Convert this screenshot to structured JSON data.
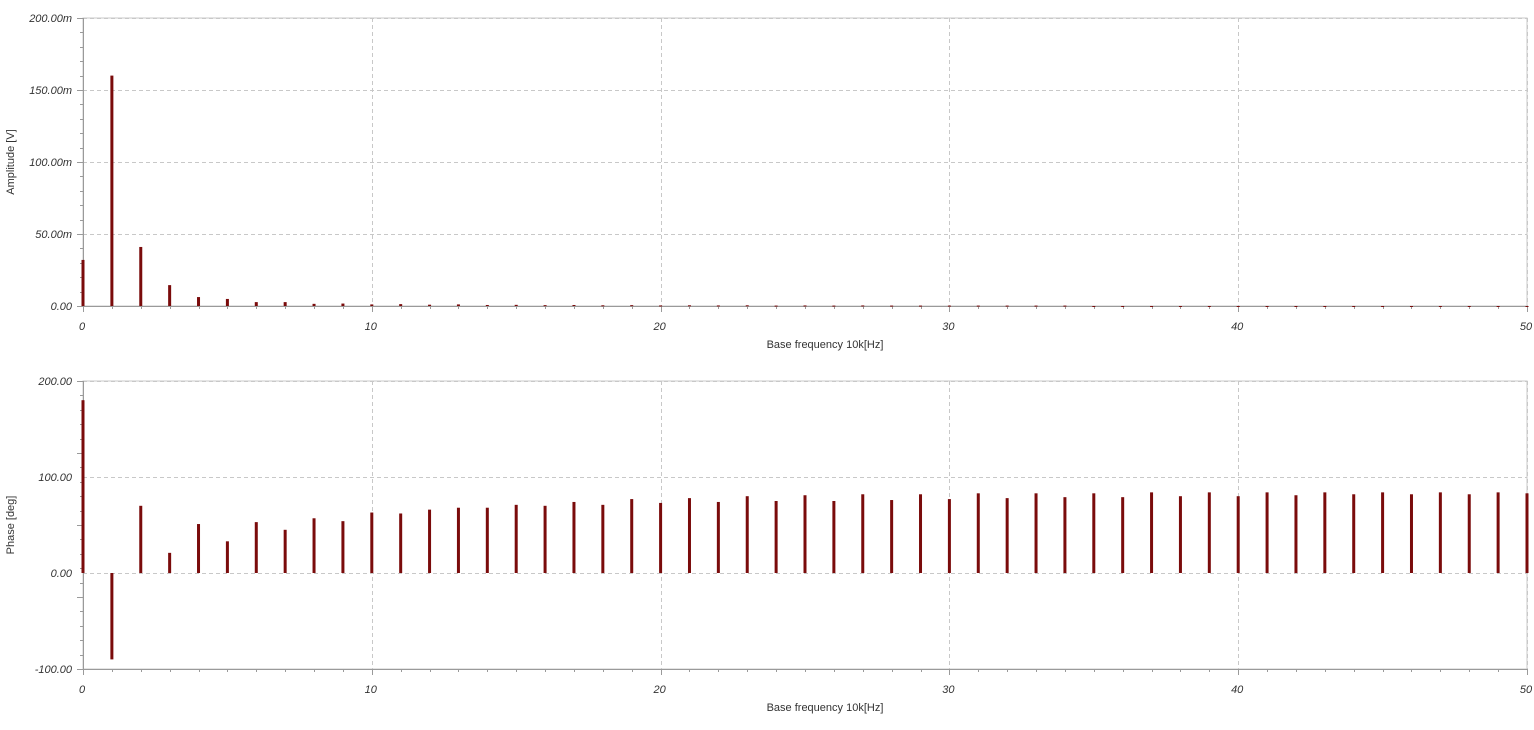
{
  "colors": {
    "stem": "#7a0b0b",
    "grid": "#c8c8c8",
    "axis": "#9a9a9a",
    "text": "#333333"
  },
  "chart_data": [
    {
      "type": "bar",
      "name": "amplitude",
      "xlabel": "Base frequency 10k[Hz]",
      "ylabel": "Amplitude [V]",
      "xlim": [
        0,
        50
      ],
      "ylim": [
        0,
        0.2
      ],
      "grid": true,
      "x_ticks": [
        0,
        10,
        20,
        30,
        40,
        50
      ],
      "x_tick_labels": [
        "0",
        "10",
        "20",
        "30",
        "40",
        "50"
      ],
      "y_ticks": [
        0,
        0.05,
        0.1,
        0.15,
        0.2
      ],
      "y_tick_labels": [
        "0.00",
        "50.00m",
        "100.00m",
        "150.00m",
        "200.00m"
      ],
      "x": [
        0,
        1,
        2,
        3,
        4,
        5,
        6,
        7,
        8,
        9,
        10,
        11,
        12,
        13,
        14,
        15,
        16,
        17,
        18,
        19,
        20,
        21,
        22,
        23,
        24,
        25,
        26,
        27,
        28,
        29,
        30,
        31,
        32,
        33,
        34,
        35,
        36,
        37,
        38,
        39,
        40,
        41,
        42,
        43,
        44,
        45,
        46,
        47,
        48,
        49,
        50
      ],
      "values": [
        0.032,
        0.16,
        0.041,
        0.0145,
        0.0062,
        0.0049,
        0.0027,
        0.0027,
        0.0015,
        0.0017,
        0.0011,
        0.0013,
        0.0009,
        0.0011,
        0.0007,
        0.0008,
        0.0006,
        0.0007,
        0.0005,
        0.0006,
        0.0004,
        0.0005,
        0.0004,
        0.0005,
        0.0003,
        0.0004,
        0.0003,
        0.0004,
        0.0003,
        0.0003,
        0.0003,
        0.0003,
        0.0003,
        0.0003,
        0.0003,
        0,
        0,
        0,
        0,
        0,
        0,
        0,
        0,
        0,
        0,
        0,
        0,
        0,
        0,
        0,
        0
      ]
    },
    {
      "type": "bar",
      "name": "phase",
      "xlabel": "Base frequency 10k[Hz]",
      "ylabel": "Phase [deg]",
      "xlim": [
        0,
        50
      ],
      "ylim": [
        -100,
        200
      ],
      "grid": true,
      "x_ticks": [
        0,
        10,
        20,
        30,
        40,
        50
      ],
      "x_tick_labels": [
        "0",
        "10",
        "20",
        "30",
        "40",
        "50"
      ],
      "y_ticks": [
        -100,
        0,
        100,
        200
      ],
      "y_tick_labels": [
        "-100.00",
        "0.00",
        "100.00",
        "200.00"
      ],
      "x": [
        0,
        1,
        2,
        3,
        4,
        5,
        6,
        7,
        8,
        9,
        10,
        11,
        12,
        13,
        14,
        15,
        16,
        17,
        18,
        19,
        20,
        21,
        22,
        23,
        24,
        25,
        26,
        27,
        28,
        29,
        30,
        31,
        32,
        33,
        34,
        35,
        36,
        37,
        38,
        39,
        40,
        41,
        42,
        43,
        44,
        45,
        46,
        47,
        48,
        49,
        50
      ],
      "values": [
        180,
        -90,
        70,
        21,
        51,
        33,
        53,
        45,
        57,
        54,
        63,
        62,
        66,
        68,
        68,
        71,
        70,
        74,
        71,
        77,
        73,
        78,
        74,
        80,
        75,
        81,
        75,
        82,
        76,
        82,
        77,
        83,
        78,
        83,
        79,
        83,
        79,
        84,
        80,
        84,
        80,
        84,
        81,
        84,
        82,
        84,
        82,
        84,
        82,
        84,
        83
      ]
    }
  ]
}
